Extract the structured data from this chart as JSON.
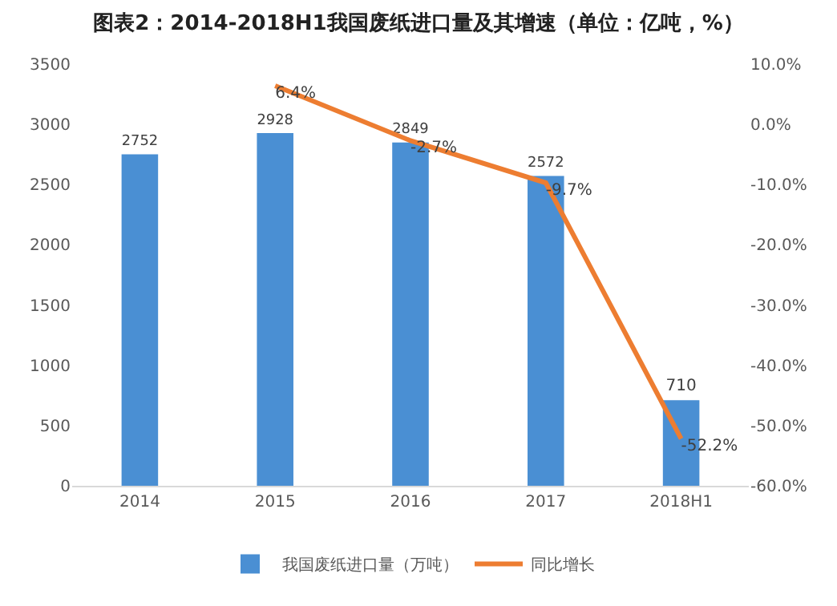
{
  "chart_data": {
    "type": "bar",
    "title": "图表2：2014-2018H1我国废纸进口量及其增速（单位：亿吨，%）",
    "categories": [
      "2014",
      "2015",
      "2016",
      "2017",
      "2018H1"
    ],
    "series": [
      {
        "name": "我国废纸进口量（万吨）",
        "color": "#4a8fd3",
        "values": [
          2752,
          2928,
          2849,
          2572,
          710
        ],
        "value_labels": [
          "2752",
          "2928",
          "2849",
          "2572",
          "710"
        ]
      },
      {
        "name": "同比增长",
        "type": "line",
        "axis": "y2",
        "color": "#ed7d31",
        "values": [
          null,
          6.4,
          -2.7,
          -9.7,
          -52.2
        ],
        "value_labels": [
          null,
          "6.4%",
          "-2.7%",
          "-9.7%",
          "-52.2%"
        ]
      }
    ],
    "ylim": [
      0,
      3500
    ],
    "yticks": [
      0,
      500,
      1000,
      1500,
      2000,
      2500,
      3000,
      3500
    ],
    "y2lim": [
      -60,
      10
    ],
    "y2ticks": [
      {
        "value": -60,
        "label": "-60.0%"
      },
      {
        "value": -50,
        "label": "-50.0%"
      },
      {
        "value": -40,
        "label": "-40.0%"
      },
      {
        "value": -30,
        "label": "-30.0%"
      },
      {
        "value": -20,
        "label": "-20.0%"
      },
      {
        "value": -10,
        "label": "-10.0%"
      },
      {
        "value": 0,
        "label": "0.0%"
      },
      {
        "value": 10,
        "label": "10.0%"
      }
    ],
    "grid": false,
    "legend": "bottom",
    "marker": "none",
    "line_style": "solid"
  }
}
